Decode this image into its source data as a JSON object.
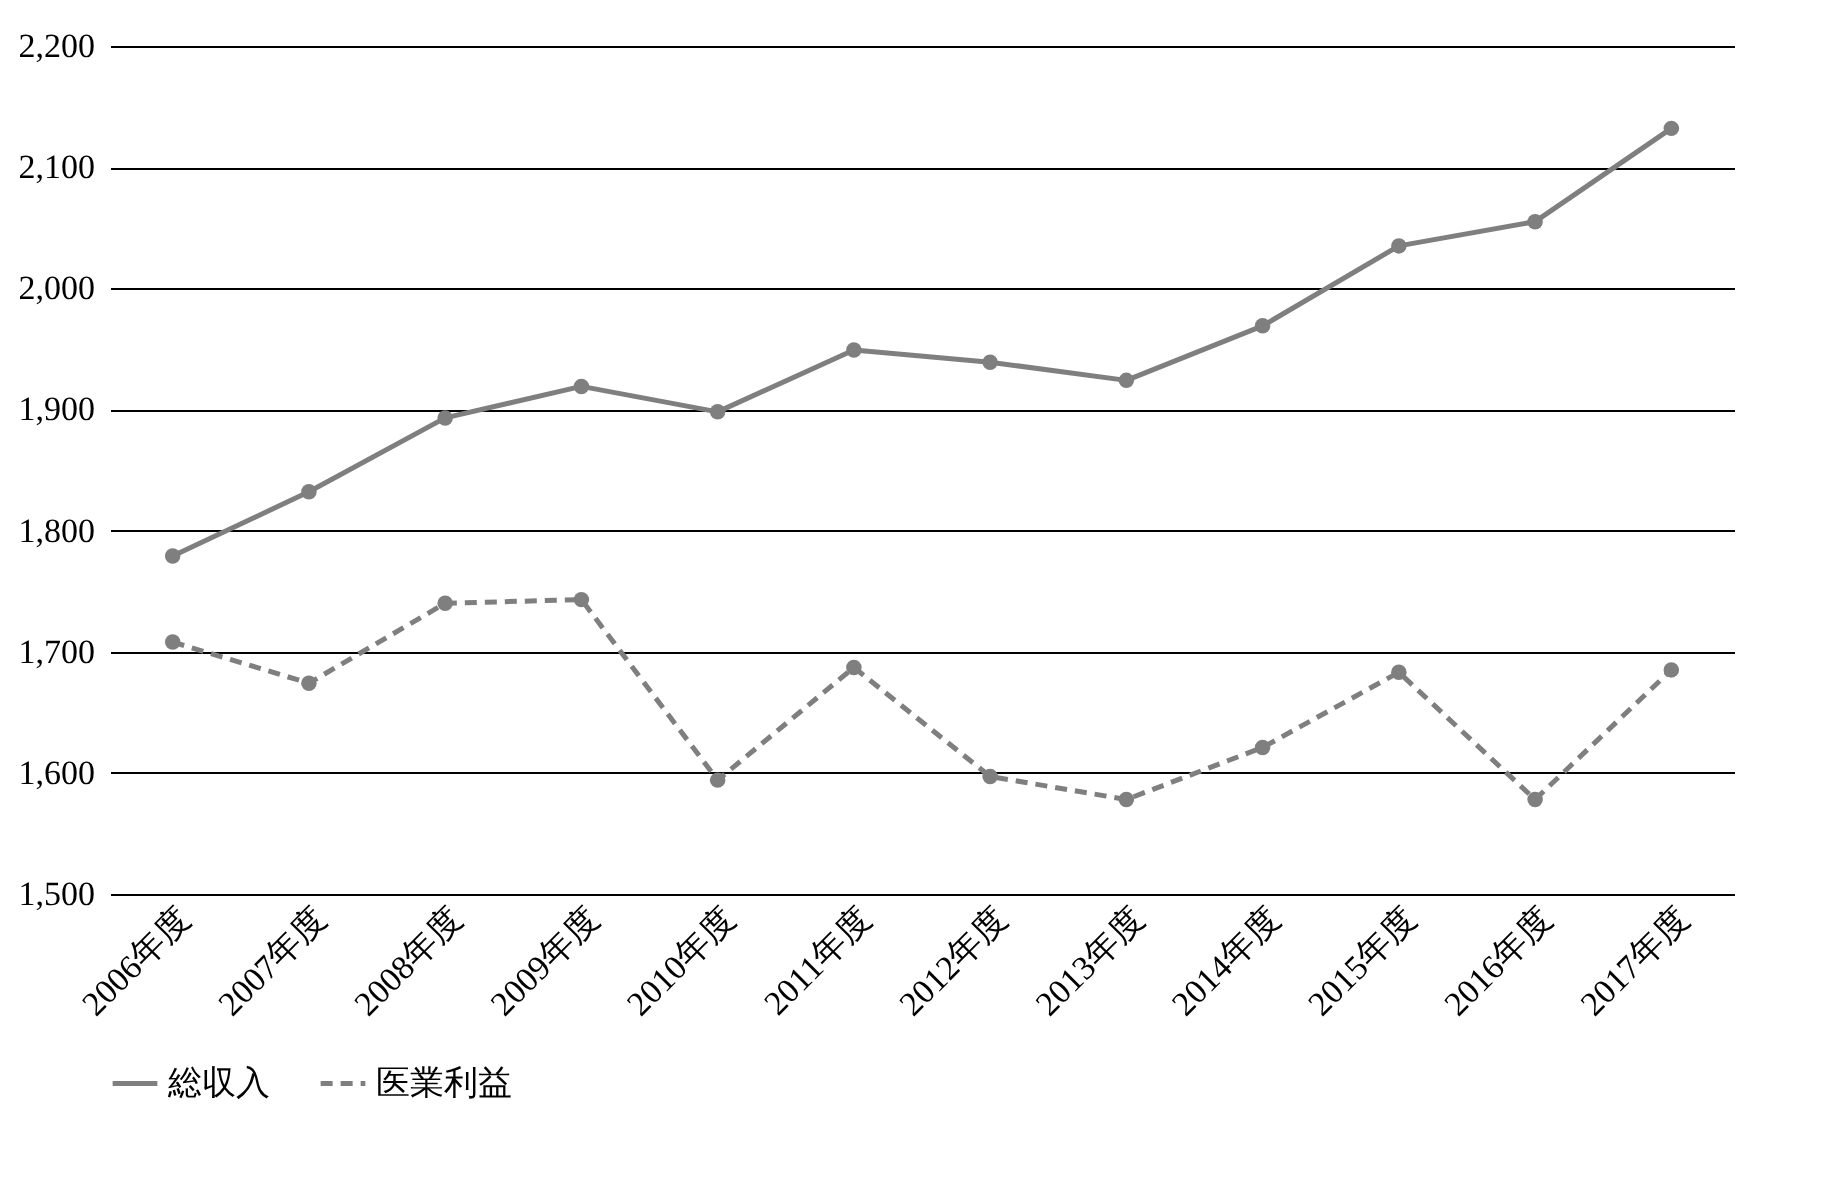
{
  "chart_data": {
    "type": "line",
    "categories": [
      "2006年度",
      "2007年度",
      "2008年度",
      "2009年度",
      "2010年度",
      "2011年度",
      "2012年度",
      "2013年度",
      "2014年度",
      "2015年度",
      "2016年度",
      "2017年度"
    ],
    "series": [
      {
        "name": "総収入",
        "color": "#7f7f7f",
        "line_style": "solid",
        "values": [
          1779,
          1832,
          1893,
          1919,
          1898,
          1949,
          1939,
          1924,
          1969,
          2035,
          2055,
          2132
        ]
      },
      {
        "name": "医業利益",
        "color": "#7f7f7f",
        "line_style": "dashed",
        "values": [
          1708,
          1674,
          1740,
          1743,
          1594,
          1687,
          1597,
          1578,
          1621,
          1683,
          1578,
          1685
        ]
      }
    ],
    "ylim": [
      1500,
      2200
    ],
    "yticks": [
      {
        "value": 1500,
        "label": "1,500"
      },
      {
        "value": 1600,
        "label": "1,600"
      },
      {
        "value": 1700,
        "label": "1,700"
      },
      {
        "value": 1800,
        "label": "1,800"
      },
      {
        "value": 1900,
        "label": "1,900"
      },
      {
        "value": 2000,
        "label": "2,000"
      },
      {
        "value": 2100,
        "label": "2,100"
      },
      {
        "value": 2200,
        "label": "2,200"
      }
    ],
    "grid": "y",
    "legend": "bottom",
    "marker": "circle"
  }
}
